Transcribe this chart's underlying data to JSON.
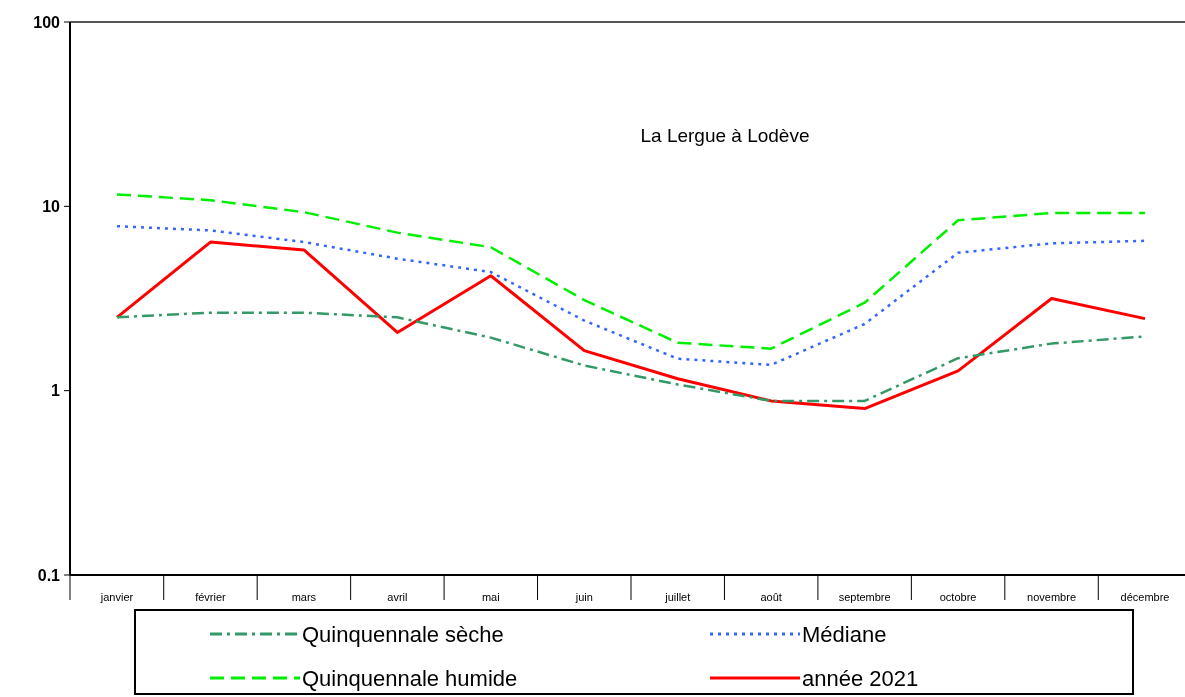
{
  "chart_data": {
    "type": "line",
    "title": "La Lergue à Lodève",
    "categories": [
      "janvier",
      "février",
      "mars",
      "avril",
      "mai",
      "juin",
      "juillet",
      "août",
      "septembre",
      "octobre",
      "novembre",
      "décembre"
    ],
    "series": [
      {
        "name": "Quinquennale sèche",
        "color": "#339966",
        "line_style": "dashdot",
        "values": [
          2.5,
          2.65,
          2.65,
          2.5,
          1.94,
          1.37,
          1.08,
          0.88,
          0.88,
          1.5,
          1.8,
          1.97
        ]
      },
      {
        "name": "Médiane",
        "color": "#3366ff",
        "line_style": "dotted",
        "values": [
          7.8,
          7.4,
          6.4,
          5.2,
          4.4,
          2.4,
          1.49,
          1.38,
          2.3,
          5.6,
          6.3,
          6.5
        ]
      },
      {
        "name": "Quinquennale humide",
        "color": "#00ee00",
        "line_style": "dashed",
        "values": [
          11.6,
          10.8,
          9.3,
          7.2,
          6.0,
          3.1,
          1.82,
          1.69,
          3.0,
          8.4,
          9.2,
          9.2
        ]
      },
      {
        "name": "année 2021",
        "color": "#ff0000",
        "line_style": "solid",
        "values": [
          2.5,
          6.4,
          5.8,
          2.07,
          4.2,
          1.65,
          1.16,
          0.88,
          0.8,
          1.28,
          3.16,
          2.46
        ]
      }
    ],
    "log": true,
    "ylim": [
      0.1,
      100
    ],
    "yticks": [
      0.1,
      1,
      10,
      100
    ],
    "legend": "bottom",
    "grid": false,
    "marker": "none"
  }
}
